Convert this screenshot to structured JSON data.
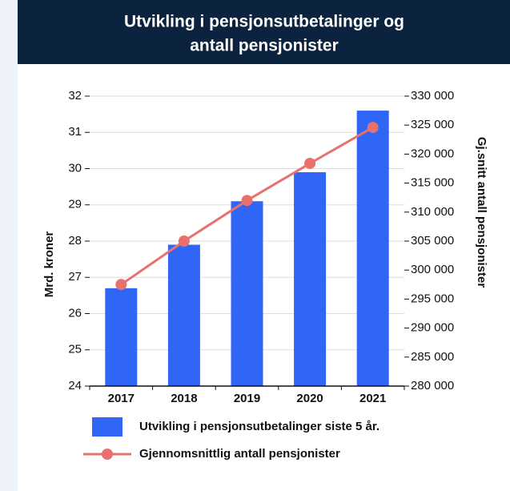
{
  "chart_data": {
    "type": "bar_line",
    "title_lines": [
      "Utvikling i pensjonsutbetalinger og",
      "antall pensjonister"
    ],
    "categories": [
      "2017",
      "2018",
      "2019",
      "2020",
      "2021"
    ],
    "series": [
      {
        "name": "Utvikling i pensjonsutbetalinger siste 5 år.",
        "type": "bar",
        "color": "#2f66f5",
        "values": [
          26.7,
          27.9,
          29.1,
          29.9,
          31.6
        ]
      },
      {
        "name": "Gjennomsnittlig antall pensjonister",
        "type": "line",
        "color": "#e8706f",
        "axis": "y2",
        "values": [
          297500,
          305000,
          312000,
          318400,
          324600
        ]
      }
    ],
    "ylabel": "Mrd. kroner",
    "y2label": "Gj.snitt antall pensjonister",
    "ylim": [
      24,
      32
    ],
    "yticks": [
      24,
      25,
      26,
      27,
      28,
      29,
      30,
      31,
      32
    ],
    "y2lim": [
      280000,
      330000
    ],
    "y2ticks": [
      {
        "value": 280000,
        "label": "280 000"
      },
      {
        "value": 285000,
        "label": "285 000"
      },
      {
        "value": 290000,
        "label": "290 000"
      },
      {
        "value": 295000,
        "label": "295 000"
      },
      {
        "value": 300000,
        "label": "300 000"
      },
      {
        "value": 305000,
        "label": "305 000"
      },
      {
        "value": 310000,
        "label": "310 000"
      },
      {
        "value": 315000,
        "label": "315 000"
      },
      {
        "value": 320000,
        "label": "320 000"
      },
      {
        "value": 325000,
        "label": "325 000"
      },
      {
        "value": 330000,
        "label": "330 000"
      }
    ],
    "grid": true
  }
}
